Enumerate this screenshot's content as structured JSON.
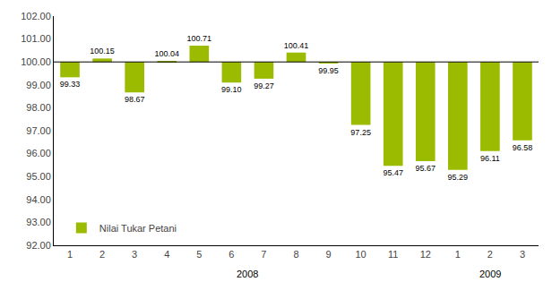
{
  "chart_data": {
    "type": "bar",
    "categories": [
      "1",
      "2",
      "3",
      "4",
      "5",
      "6",
      "7",
      "8",
      "9",
      "10",
      "11",
      "12",
      "1",
      "2",
      "3"
    ],
    "series": [
      {
        "name": "Nilai Tukar Petani",
        "color": "#9BBB00",
        "values": [
          99.33,
          100.15,
          98.67,
          100.04,
          100.71,
          99.1,
          99.27,
          100.41,
          99.95,
          97.25,
          95.47,
          95.67,
          95.29,
          96.11,
          96.58
        ],
        "value_labels": [
          "99.33",
          "100.15",
          "98.67",
          "100.04",
          "100.71",
          "99.10",
          "99.27",
          "100.41",
          "99.95",
          "97.25",
          "95.47",
          "95.67",
          "95.29",
          "96.11",
          "96.58"
        ]
      }
    ],
    "baseline": 100.0,
    "ylim": [
      92.0,
      102.0
    ],
    "yticks": [
      {
        "value": 92.0,
        "label": "92.00"
      },
      {
        "value": 93.0,
        "label": "93.00"
      },
      {
        "value": 94.0,
        "label": "94.00"
      },
      {
        "value": 95.0,
        "label": "95.00"
      },
      {
        "value": 96.0,
        "label": "96.00"
      },
      {
        "value": 97.0,
        "label": "97.00"
      },
      {
        "value": 98.0,
        "label": "98.00"
      },
      {
        "value": 99.0,
        "label": "99.00"
      },
      {
        "value": 100.0,
        "label": "100.00"
      },
      {
        "value": 101.0,
        "label": "101.00"
      },
      {
        "value": 102.0,
        "label": "102.00"
      }
    ],
    "annotations": [
      "2008",
      "2009"
    ],
    "data_labels": true,
    "grid": false,
    "legend": "lower left"
  }
}
